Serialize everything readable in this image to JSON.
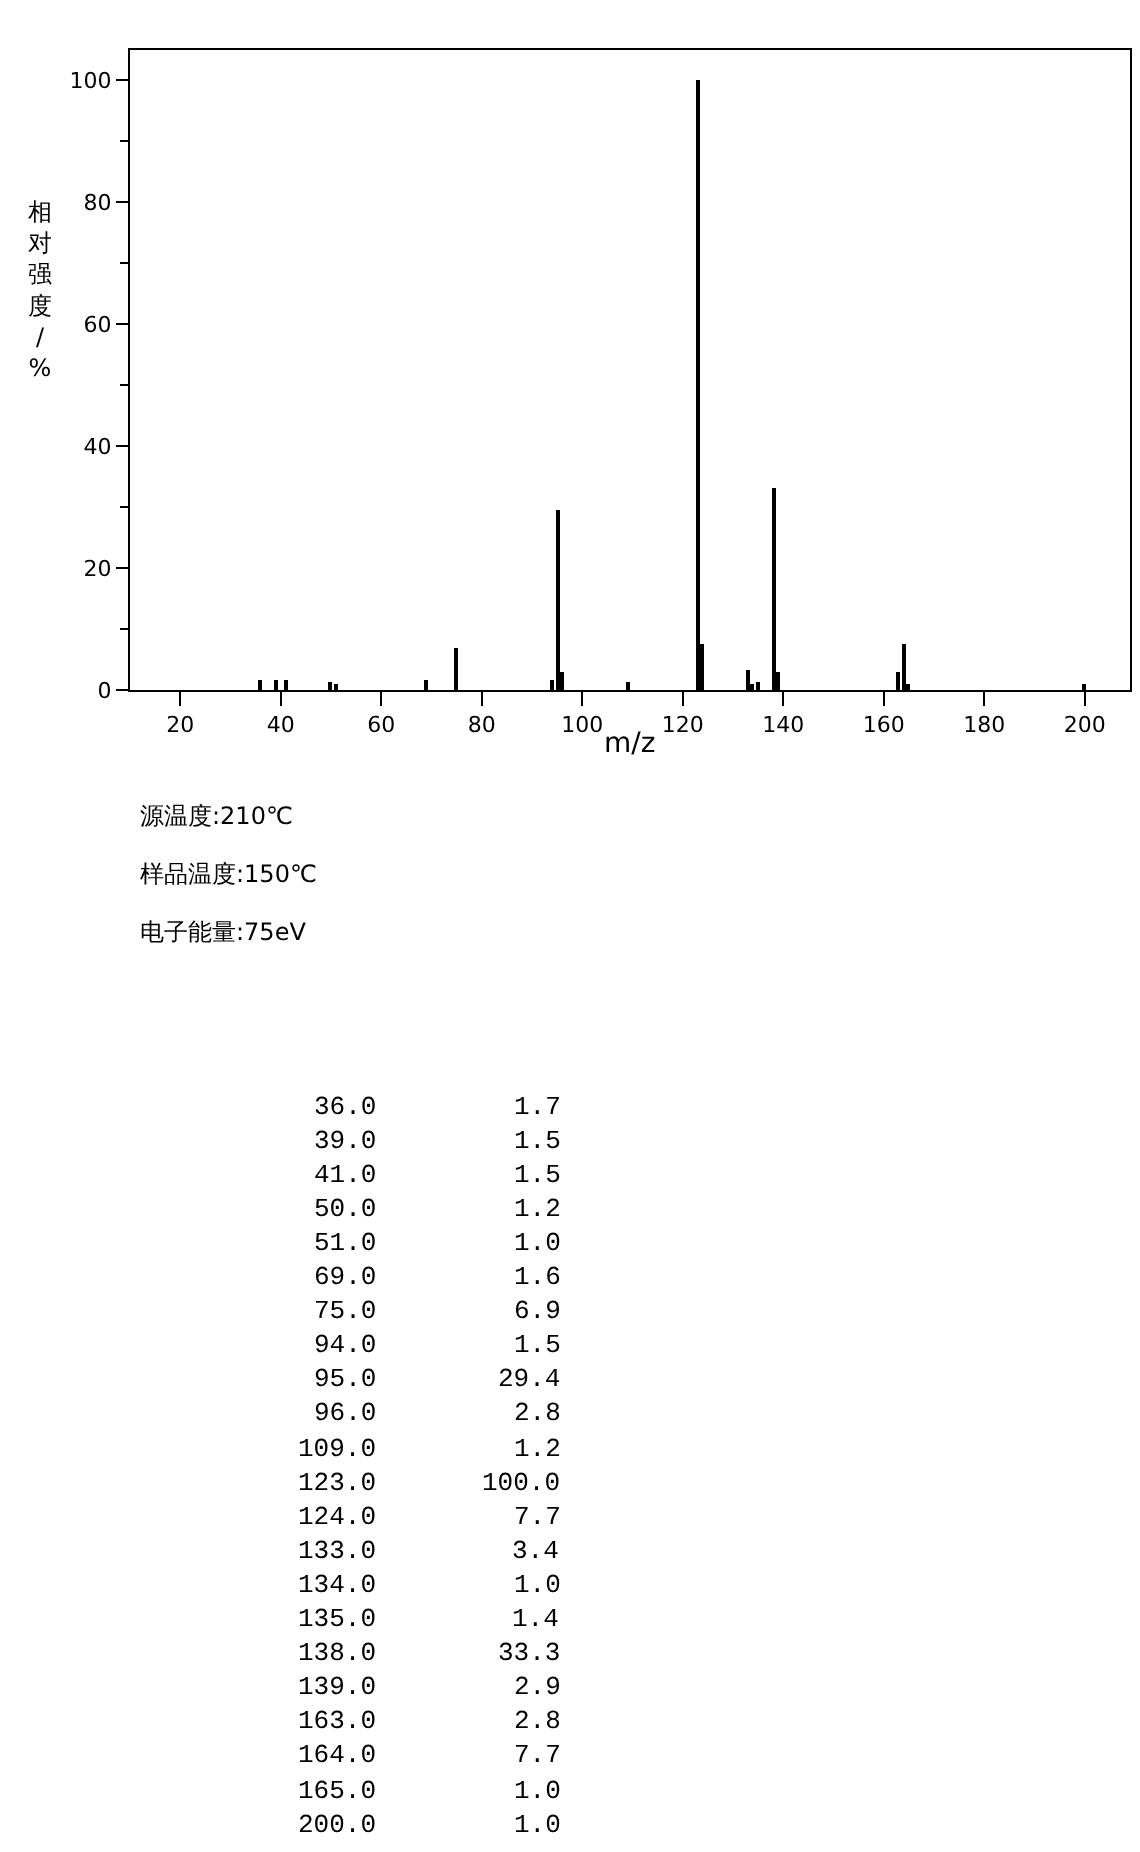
{
  "chart_data": [
    {
      "type": "bar",
      "xlabel": "m/z",
      "ylabel": "相对强度/%",
      "x": [
        36,
        39,
        41,
        50,
        51,
        69,
        75,
        94,
        95,
        96,
        109,
        123,
        124,
        133,
        134,
        135,
        138,
        139,
        163,
        164,
        165,
        200
      ],
      "values": [
        1.7,
        1.5,
        1.5,
        1.2,
        1.0,
        1.6,
        6.9,
        1.5,
        29.4,
        2.8,
        1.2,
        100.0,
        7.7,
        3.4,
        1.0,
        1.4,
        33.3,
        2.9,
        2.8,
        7.7,
        1.0,
        1.0
      ],
      "color": "#000000",
      "xlim": [
        10,
        209
      ],
      "ylim": [
        0,
        105
      ],
      "xticks": [
        20,
        40,
        60,
        80,
        100,
        120,
        140,
        160,
        180,
        200
      ],
      "yticks": [
        0,
        20,
        40,
        60,
        80,
        100,
        {
          "value": 10,
          "label": null
        },
        {
          "value": 30,
          "label": null
        },
        {
          "value": 50,
          "label": null
        },
        {
          "value": 70,
          "label": null
        },
        {
          "value": 90,
          "label": null
        }
      ],
      "annotations": [
        "源温度:210℃",
        "样品温度:150℃",
        "电子能量:75eV"
      ]
    },
    {
      "type": "other",
      "annotations": [
        "36.0",
        "1.7",
        "39.0",
        "1.5",
        "41.0",
        "1.5",
        "50.0",
        "1.2",
        "51.0",
        "1.0",
        "69.0",
        "1.6",
        "75.0",
        "6.9",
        "94.0",
        "1.5",
        "95.0",
        "29.4",
        "96.0",
        "2.8",
        "109.0",
        "1.2",
        "123.0",
        "100.0",
        "124.0",
        "7.7",
        "133.0",
        "3.4",
        "134.0",
        "1.0",
        "135.0",
        "1.4",
        "138.0",
        "33.3",
        "139.0",
        "2.9",
        "163.0",
        "2.8",
        "164.0",
        "7.7",
        "165.0",
        "1.0",
        "200.0",
        "1.0"
      ]
    }
  ]
}
